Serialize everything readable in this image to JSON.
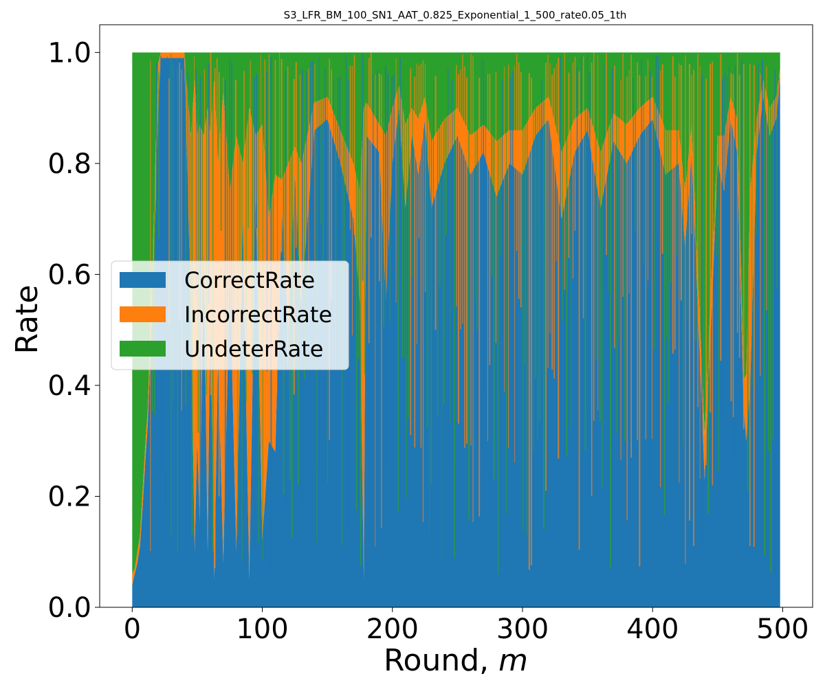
{
  "chart_data": {
    "type": "area",
    "stacked": true,
    "title": "S3_LFR_BM_100_SN1_AAT_0.825_Exponential_1_500_rate0.05_1th",
    "xlabel_main": "Round, ",
    "xlabel_var": "m",
    "ylabel": "Rate",
    "xlim": [
      -25,
      523
    ],
    "ylim": [
      0,
      1.05
    ],
    "xticks": [
      0,
      100,
      200,
      300,
      400,
      500
    ],
    "yticks": [
      0.0,
      0.2,
      0.4,
      0.6,
      0.8,
      1.0
    ],
    "xtick_labels": [
      "0",
      "100",
      "200",
      "300",
      "400",
      "500"
    ],
    "ytick_labels": [
      "0.0",
      "0.2",
      "0.4",
      "0.6",
      "0.8",
      "1.0"
    ],
    "grid": false,
    "legend_position": "center-left",
    "series": [
      {
        "name": "CorrectRate",
        "color": "#1f77b4"
      },
      {
        "name": "IncorrectRate",
        "color": "#ff7f0e"
      },
      {
        "name": "UndeterRate",
        "color": "#2ca02c"
      }
    ],
    "x": [
      0,
      2,
      4,
      6,
      8,
      10,
      12,
      15,
      18,
      20,
      22,
      25,
      28,
      30,
      35,
      40,
      45,
      48,
      50,
      52,
      55,
      58,
      60,
      63,
      66,
      70,
      75,
      80,
      85,
      90,
      95,
      100,
      105,
      110,
      115,
      120,
      125,
      130,
      140,
      150,
      160,
      170,
      175,
      178,
      180,
      190,
      195,
      200,
      205,
      210,
      215,
      220,
      225,
      230,
      240,
      250,
      260,
      270,
      280,
      290,
      300,
      310,
      320,
      330,
      340,
      350,
      360,
      370,
      380,
      390,
      400,
      410,
      420,
      425,
      430,
      440,
      450,
      455,
      460,
      465,
      470,
      472,
      475,
      480,
      485,
      490,
      495,
      498
    ],
    "correct": [
      0.04,
      0.06,
      0.08,
      0.11,
      0.18,
      0.26,
      0.33,
      0.52,
      0.72,
      0.9,
      0.99,
      0.99,
      0.99,
      0.99,
      0.99,
      0.99,
      0.55,
      0.1,
      0.3,
      0.15,
      0.65,
      0.1,
      0.55,
      0.05,
      0.45,
      0.08,
      0.6,
      0.1,
      0.7,
      0.05,
      0.75,
      0.12,
      0.3,
      0.28,
      0.72,
      0.5,
      0.78,
      0.55,
      0.86,
      0.88,
      0.8,
      0.7,
      0.55,
      0.05,
      0.85,
      0.82,
      0.55,
      0.8,
      0.9,
      0.72,
      0.85,
      0.78,
      0.88,
      0.72,
      0.8,
      0.85,
      0.78,
      0.82,
      0.74,
      0.8,
      0.78,
      0.85,
      0.88,
      0.7,
      0.82,
      0.86,
      0.72,
      0.84,
      0.8,
      0.85,
      0.88,
      0.78,
      0.8,
      0.65,
      0.82,
      0.23,
      0.8,
      0.75,
      0.88,
      0.82,
      0.36,
      0.3,
      0.4,
      0.82,
      0.92,
      0.85,
      0.88,
      0.95
    ],
    "incorrect": [
      0.02,
      0.01,
      0.02,
      0.02,
      0.03,
      0.03,
      0.03,
      0.05,
      0.1,
      0.08,
      0.01,
      0.01,
      0.01,
      0.01,
      0.01,
      0.01,
      0.3,
      0.85,
      0.55,
      0.72,
      0.2,
      0.8,
      0.3,
      0.9,
      0.35,
      0.85,
      0.15,
      0.75,
      0.1,
      0.85,
      0.1,
      0.75,
      0.4,
      0.5,
      0.05,
      0.3,
      0.05,
      0.25,
      0.05,
      0.04,
      0.06,
      0.1,
      0.2,
      0.85,
      0.06,
      0.05,
      0.3,
      0.1,
      0.04,
      0.15,
      0.05,
      0.1,
      0.04,
      0.12,
      0.08,
      0.05,
      0.07,
      0.05,
      0.1,
      0.06,
      0.08,
      0.05,
      0.04,
      0.12,
      0.06,
      0.04,
      0.1,
      0.05,
      0.07,
      0.05,
      0.04,
      0.08,
      0.06,
      0.1,
      0.05,
      0.08,
      0.05,
      0.1,
      0.04,
      0.06,
      0.05,
      0.12,
      0.35,
      0.06,
      0.03,
      0.05,
      0.04,
      0.02
    ]
  },
  "legend": {
    "correct_label": "CorrectRate",
    "incorrect_label": "IncorrectRate",
    "undeter_label": "UndeterRate"
  }
}
